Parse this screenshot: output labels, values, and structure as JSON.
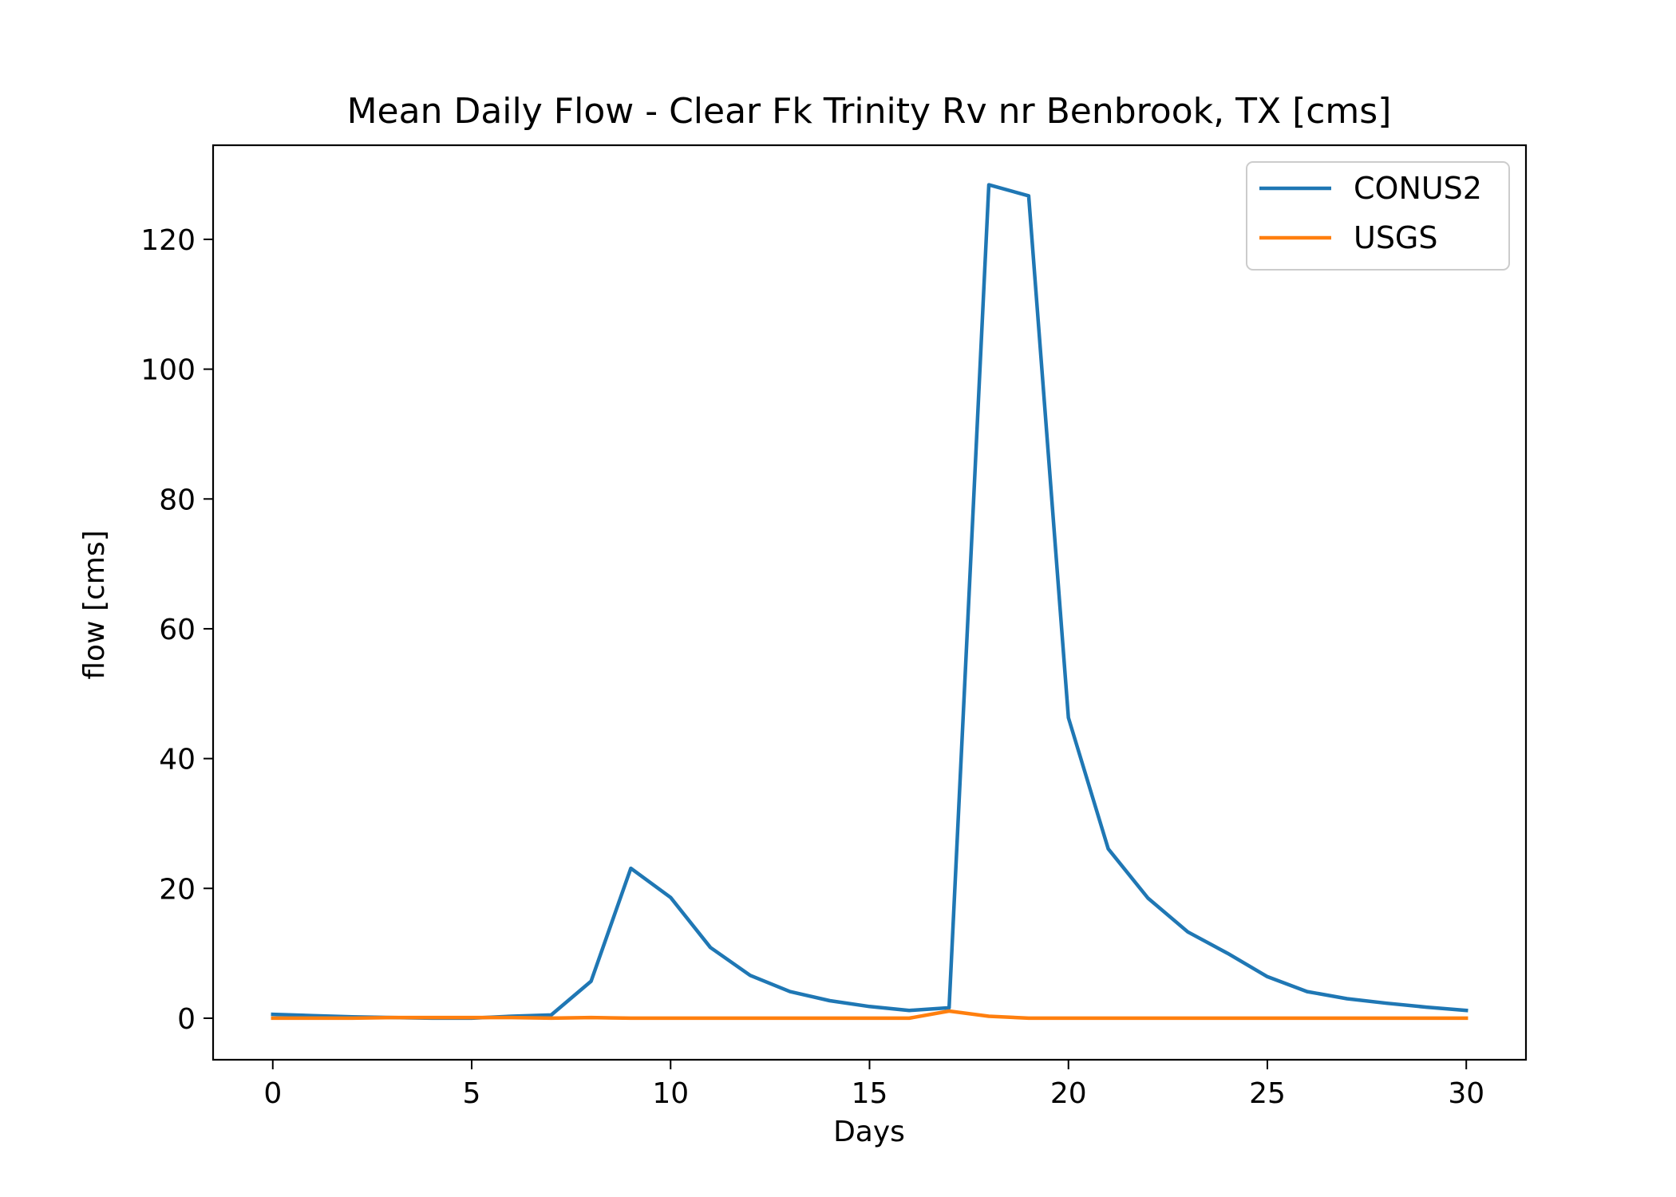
{
  "chart_data": {
    "type": "line",
    "title": "Mean Daily Flow - Clear Fk Trinity Rv nr Benbrook, TX [cms]",
    "xlabel": "Days",
    "ylabel": "flow [cms]",
    "xlim": [
      -1.5,
      31.5
    ],
    "ylim": [
      -6.4,
      134.5
    ],
    "xticks": [
      0,
      5,
      10,
      15,
      20,
      25,
      30
    ],
    "yticks": [
      0,
      20,
      40,
      60,
      80,
      100,
      120
    ],
    "xtick_labels": [
      "0",
      "5",
      "10",
      "15",
      "20",
      "25",
      "30"
    ],
    "ytick_labels": [
      "0",
      "20",
      "40",
      "60",
      "80",
      "100",
      "120"
    ],
    "grid": false,
    "legend_position": "top-right",
    "x": [
      0,
      1,
      2,
      3,
      4,
      5,
      6,
      7,
      8,
      9,
      10,
      11,
      12,
      13,
      14,
      15,
      16,
      17,
      18,
      19,
      20,
      21,
      22,
      23,
      24,
      25,
      26,
      27,
      28,
      29,
      30
    ],
    "series": [
      {
        "name": "CONUS2",
        "color": "#1f77b4",
        "values": [
          0.6,
          0.4,
          0.2,
          0.1,
          0.0,
          0.0,
          0.3,
          0.5,
          5.7,
          23.1,
          18.6,
          10.9,
          6.6,
          4.1,
          2.7,
          1.8,
          1.2,
          1.6,
          128.4,
          126.7,
          46.3,
          26.1,
          18.5,
          13.3,
          10.0,
          6.4,
          4.1,
          3.0,
          2.3,
          1.7,
          1.2
        ]
      },
      {
        "name": "USGS",
        "color": "#ff7f0e",
        "values": [
          0.0,
          0.0,
          0.0,
          0.1,
          0.1,
          0.1,
          0.1,
          0.0,
          0.1,
          0.0,
          0.0,
          0.0,
          0.0,
          0.0,
          0.0,
          0.0,
          0.0,
          1.1,
          0.3,
          0.0,
          0.0,
          0.0,
          0.0,
          0.0,
          0.0,
          0.0,
          0.0,
          0.0,
          0.0,
          0.0,
          0.0
        ]
      }
    ]
  }
}
